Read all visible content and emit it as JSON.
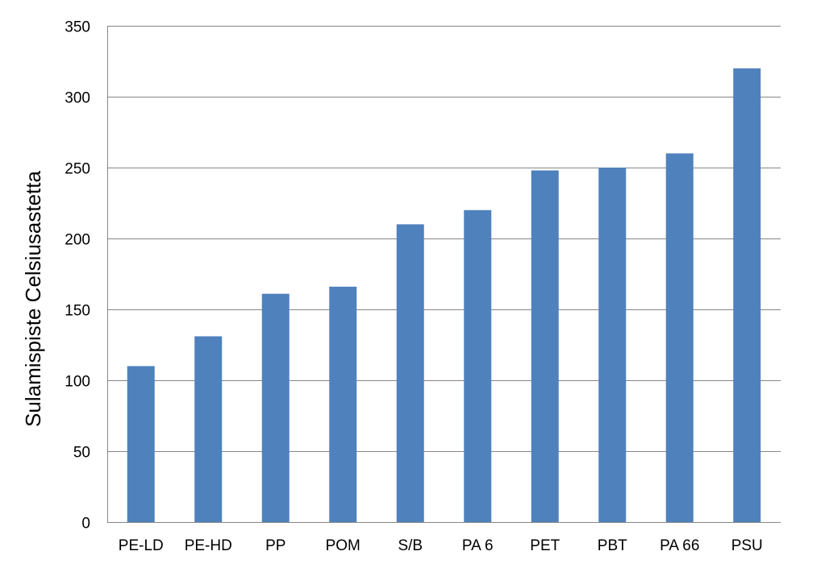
{
  "chart_data": {
    "type": "bar",
    "title": "",
    "xlabel": "",
    "ylabel": "Sulamispiste  Celsiusastetta",
    "categories": [
      "PE-LD",
      "PE-HD",
      "PP",
      "POM",
      "S/B",
      "PA 6",
      "PET",
      "PBT",
      "PA 66",
      "PSU"
    ],
    "values": [
      110,
      131,
      161,
      166,
      210,
      220,
      248,
      250,
      260,
      320
    ],
    "ylim": [
      0,
      350
    ],
    "yticks": [
      0,
      50,
      100,
      150,
      200,
      250,
      300,
      350
    ],
    "grid": true,
    "legend": "none",
    "colors": {
      "bar": "#4F81BD",
      "grid": "#868686",
      "axis": "#868686",
      "text": "#000000"
    }
  }
}
